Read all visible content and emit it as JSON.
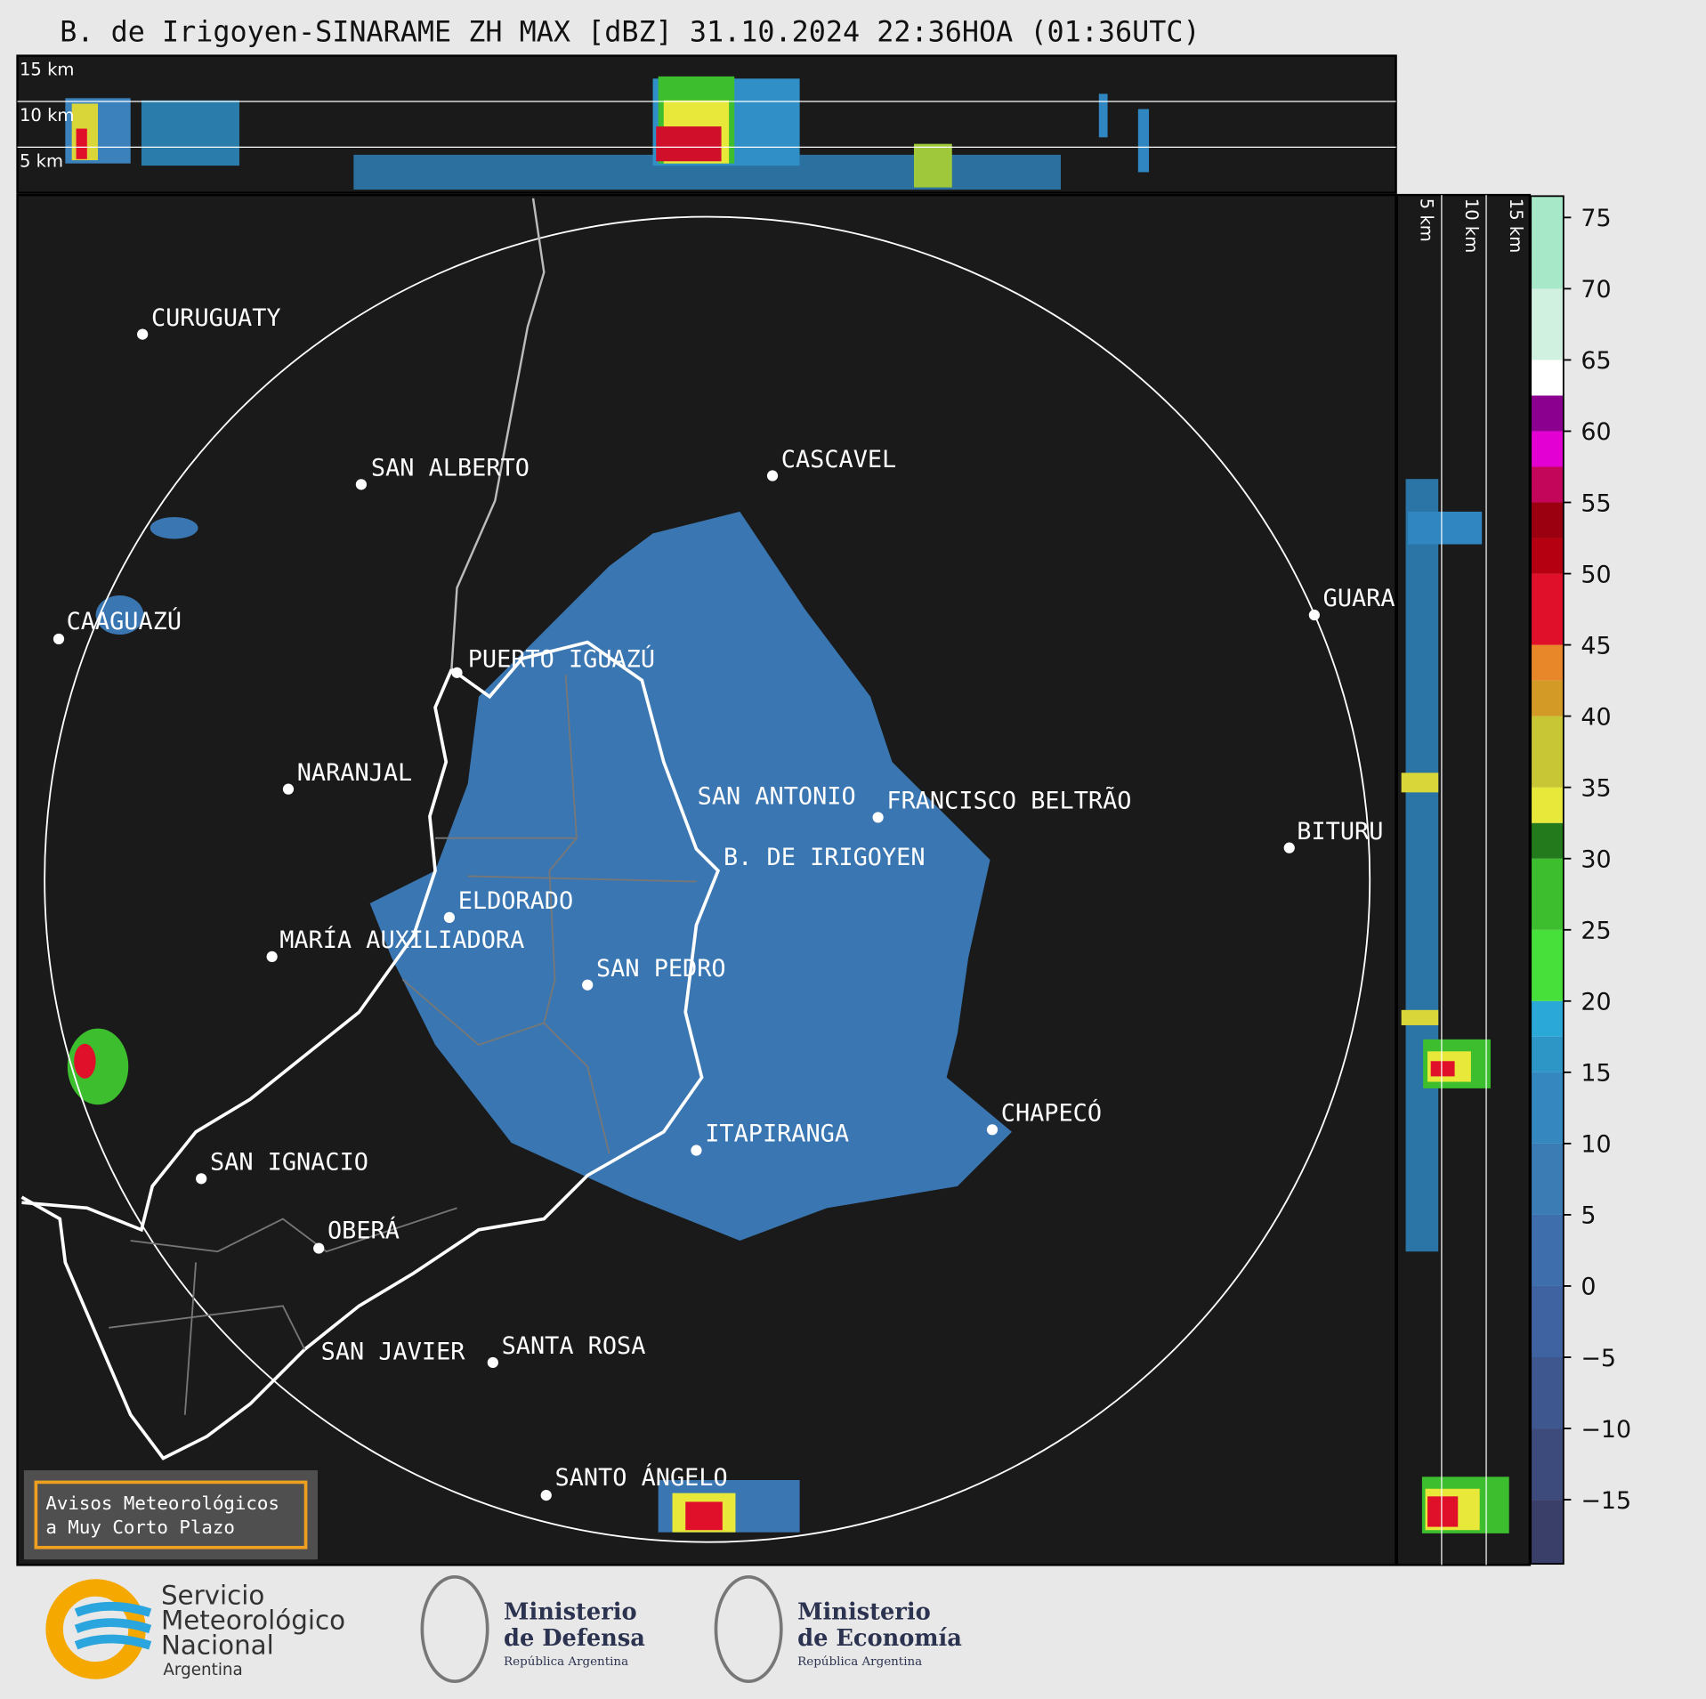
{
  "header": {
    "title": "B. de Irigoyen-SINARAME ZH MAX [dBZ] 31.10.2024 22:36HOA (01:36UTC)"
  },
  "cross_section_top": {
    "labels": [
      "15 km",
      "10 km",
      "5 km"
    ]
  },
  "cross_section_side": {
    "labels": [
      "5 km",
      "10 km",
      "15 km"
    ]
  },
  "map": {
    "cities": [
      "CURUGUATY",
      "SAN ALBERTO",
      "CASCAVEL",
      "CAAGUAZÚ",
      "GUARA",
      "PUERTO IGUAZÚ",
      "NARANJAL",
      "SAN ANTONIO",
      "FRANCISCO BELTRÃO",
      "BITURU",
      "B. DE IRIGOYEN",
      "ELDORADO",
      "MARÍA AUXILIADORA",
      "SAN PEDRO",
      "CHAPECÓ",
      "ITAPIRANGA",
      "SAN IGNACIO",
      "OBERÁ",
      "SAN JAVIER",
      "SANTA ROSA",
      "SANTO ÁNGELO"
    ]
  },
  "colorbar": {
    "lim": [
      -19.5,
      76.5
    ],
    "bounds": [
      -19.5,
      -15,
      -10,
      -5,
      0,
      5,
      10,
      15,
      17.5,
      20,
      25,
      30,
      32.5,
      35,
      40,
      42.5,
      45,
      50,
      52.5,
      55,
      57.5,
      60,
      62.5,
      65,
      70,
      76.5
    ],
    "colors": [
      "#3a3f6a",
      "#3d4a7c",
      "#3f578f",
      "#3f63a0",
      "#3e6fac",
      "#3b7cb5",
      "#3587bf",
      "#2e96c6",
      "#2aa8d8",
      "#47e03a",
      "#3cbe2e",
      "#237a1d",
      "#e8e83a",
      "#c9c636",
      "#d39a25",
      "#e8872a",
      "#e0102a",
      "#b50012",
      "#9a0010",
      "#c4065a",
      "#e300d2",
      "#8c0090",
      "#ffffff",
      "#d0f0e0",
      "#a6e8c8",
      "#7fd8b4"
    ],
    "ticks": [
      {
        "value": -15,
        "label": "−15"
      },
      {
        "value": -10,
        "label": "−10"
      },
      {
        "value": -5,
        "label": "−5"
      },
      0,
      5,
      10,
      15,
      20,
      25,
      30,
      35,
      40,
      45,
      50,
      55,
      60,
      65,
      70,
      75
    ]
  },
  "notice": {
    "lines": [
      "Avisos Meteorológicos",
      "a Muy Corto Plazo"
    ]
  },
  "footer": {
    "smn": [
      "Servicio",
      "Meteorológico",
      "Nacional",
      "Argentina"
    ],
    "defensa": [
      "Ministerio",
      "de Defensa",
      "República Argentina"
    ],
    "economia": [
      "Ministerio",
      "de Economía",
      "República Argentina"
    ]
  }
}
